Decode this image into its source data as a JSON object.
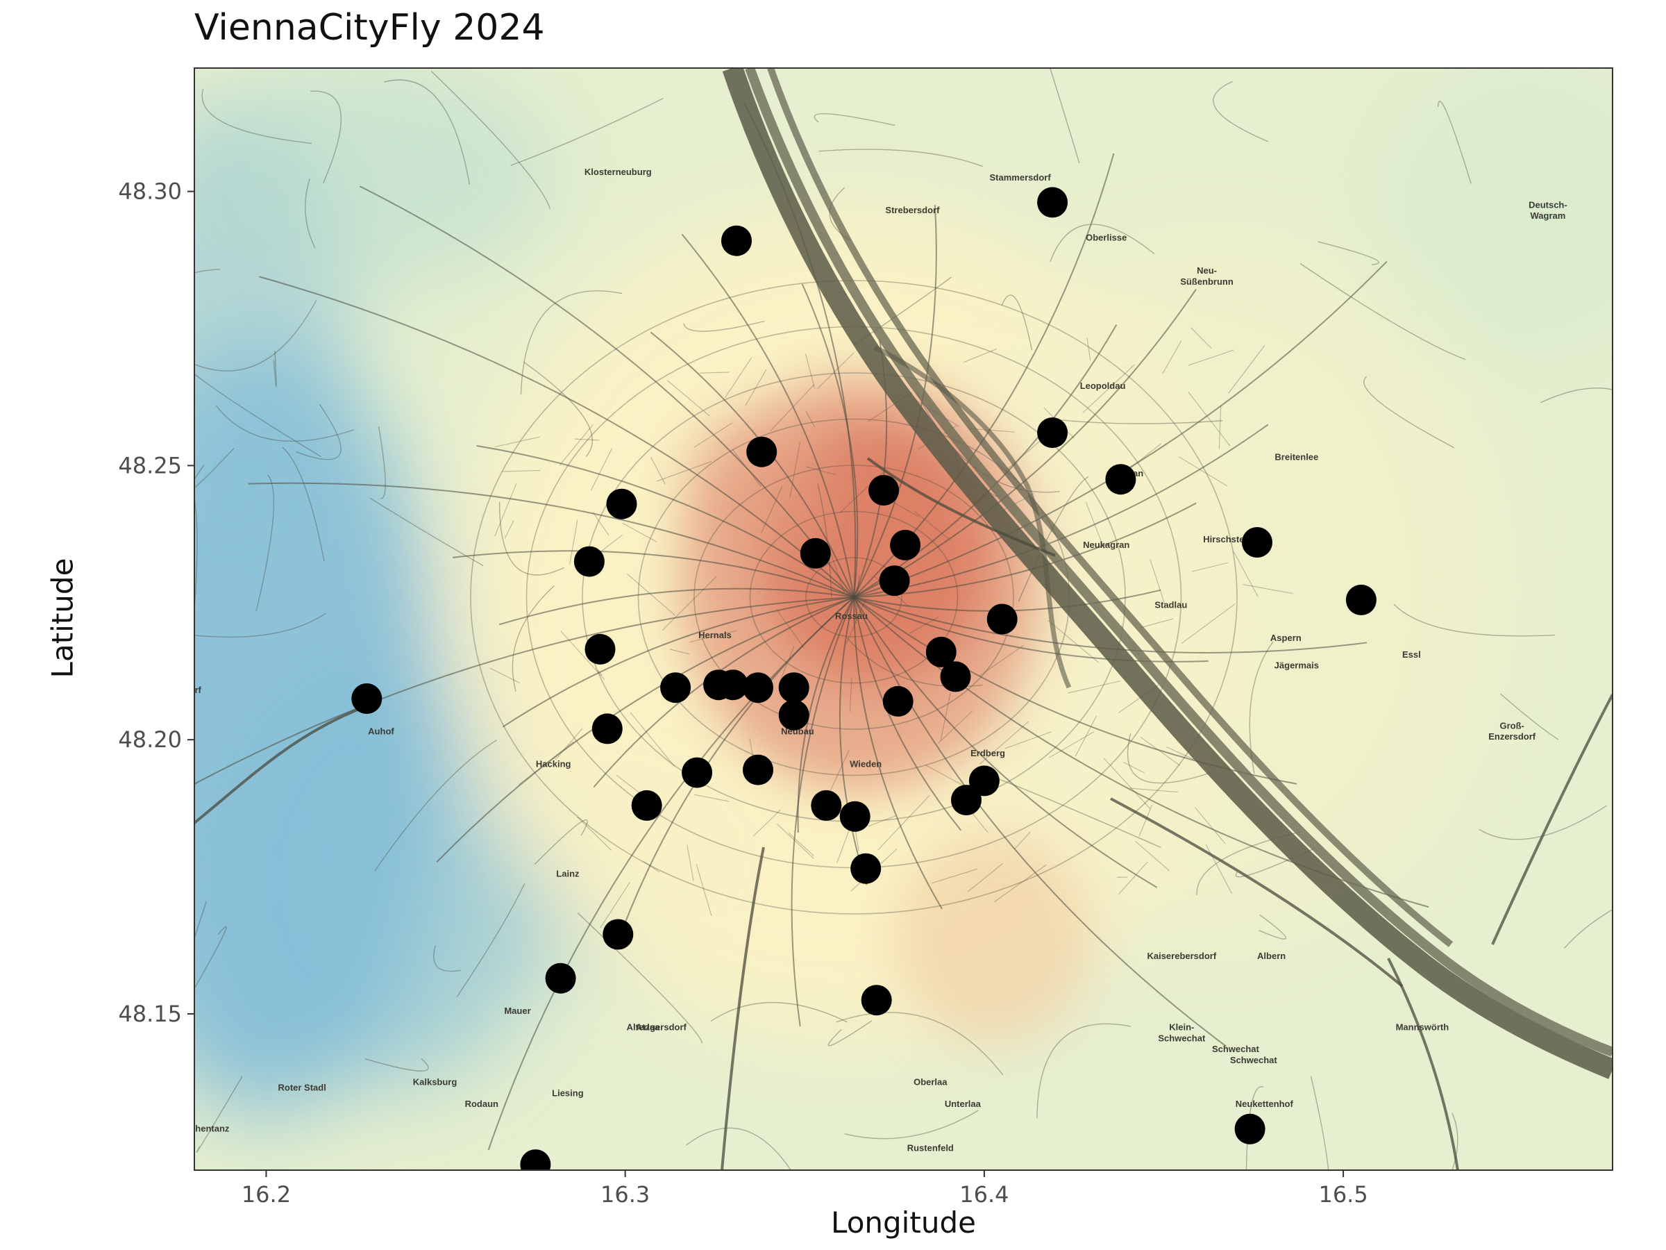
{
  "chart_data": {
    "type": "scatter",
    "title": "ViennaCityFly 2024",
    "xlabel": "Longitude",
    "ylabel": "Latitude",
    "xlim": [
      16.18,
      16.575
    ],
    "ylim": [
      48.1215,
      48.3225
    ],
    "xticks": [
      "16.2",
      "16.3",
      "16.4",
      "16.5"
    ],
    "yticks": [
      "48.15",
      "48.20",
      "48.25",
      "48.30"
    ],
    "grid": false,
    "legend": "none",
    "point_color": "#000000",
    "heat_palette": [
      "#4b9fd6",
      "#a8d5cc",
      "#fcf4c8",
      "#d46b52"
    ],
    "points": [
      {
        "x": 16.228,
        "y": 48.2075
      },
      {
        "x": 16.275,
        "y": 48.1225
      },
      {
        "x": 16.282,
        "y": 48.1565
      },
      {
        "x": 16.29,
        "y": 48.2325
      },
      {
        "x": 16.293,
        "y": 48.2165
      },
      {
        "x": 16.295,
        "y": 48.202
      },
      {
        "x": 16.298,
        "y": 48.1645
      },
      {
        "x": 16.299,
        "y": 48.243
      },
      {
        "x": 16.306,
        "y": 48.188
      },
      {
        "x": 16.314,
        "y": 48.2095
      },
      {
        "x": 16.32,
        "y": 48.194
      },
      {
        "x": 16.326,
        "y": 48.21
      },
      {
        "x": 16.33,
        "y": 48.21
      },
      {
        "x": 16.331,
        "y": 48.291
      },
      {
        "x": 16.337,
        "y": 48.1945
      },
      {
        "x": 16.337,
        "y": 48.2095
      },
      {
        "x": 16.338,
        "y": 48.2525
      },
      {
        "x": 16.347,
        "y": 48.2045
      },
      {
        "x": 16.347,
        "y": 48.2095
      },
      {
        "x": 16.353,
        "y": 48.234
      },
      {
        "x": 16.356,
        "y": 48.188
      },
      {
        "x": 16.364,
        "y": 48.186
      },
      {
        "x": 16.367,
        "y": 48.1765
      },
      {
        "x": 16.37,
        "y": 48.1525
      },
      {
        "x": 16.372,
        "y": 48.2455
      },
      {
        "x": 16.375,
        "y": 48.229
      },
      {
        "x": 16.376,
        "y": 48.207
      },
      {
        "x": 16.378,
        "y": 48.2355
      },
      {
        "x": 16.388,
        "y": 48.216
      },
      {
        "x": 16.392,
        "y": 48.2115
      },
      {
        "x": 16.395,
        "y": 48.189
      },
      {
        "x": 16.4,
        "y": 48.1925
      },
      {
        "x": 16.405,
        "y": 48.222
      },
      {
        "x": 16.419,
        "y": 48.256
      },
      {
        "x": 16.419,
        "y": 48.298
      },
      {
        "x": 16.438,
        "y": 48.2475
      },
      {
        "x": 16.474,
        "y": 48.129
      },
      {
        "x": 16.476,
        "y": 48.236
      },
      {
        "x": 16.505,
        "y": 48.2255
      }
    ]
  },
  "map_labels": [
    {
      "text": "Klosterneuburg",
      "lon": 16.298,
      "lat": 48.303
    },
    {
      "text": "Stammersdorf",
      "lon": 16.41,
      "lat": 48.302
    },
    {
      "text": "Strebersdorf",
      "lon": 16.38,
      "lat": 48.296
    },
    {
      "text": "Oberlisse",
      "lon": 16.434,
      "lat": 48.291
    },
    {
      "text": "Neu-",
      "lon": 16.462,
      "lat": 48.285
    },
    {
      "text": "Süßenbrunn",
      "lon": 16.462,
      "lat": 48.283
    },
    {
      "text": "Deutsch-",
      "lon": 16.557,
      "lat": 48.297
    },
    {
      "text": "Wagram",
      "lon": 16.557,
      "lat": 48.295
    },
    {
      "text": "Leopoldau",
      "lon": 16.433,
      "lat": 48.264
    },
    {
      "text": "Kagran",
      "lon": 16.44,
      "lat": 48.248
    },
    {
      "text": "Breitenlee",
      "lon": 16.487,
      "lat": 48.251
    },
    {
      "text": "Hirschstetten",
      "lon": 16.469,
      "lat": 48.236
    },
    {
      "text": "Neukagran",
      "lon": 16.434,
      "lat": 48.235
    },
    {
      "text": "Stadlau",
      "lon": 16.452,
      "lat": 48.224
    },
    {
      "text": "Aspern",
      "lon": 16.484,
      "lat": 48.218
    },
    {
      "text": "Jägermais",
      "lon": 16.487,
      "lat": 48.213
    },
    {
      "text": "Essl",
      "lon": 16.519,
      "lat": 48.215
    },
    {
      "text": "Groß-",
      "lon": 16.547,
      "lat": 48.202
    },
    {
      "text": "Enzersdorf",
      "lon": 16.547,
      "lat": 48.2
    },
    {
      "text": "Hernals",
      "lon": 16.325,
      "lat": 48.2185
    },
    {
      "text": "Rossau",
      "lon": 16.363,
      "lat": 48.222
    },
    {
      "text": "Neubau",
      "lon": 16.348,
      "lat": 48.201
    },
    {
      "text": "Wieden",
      "lon": 16.367,
      "lat": 48.195
    },
    {
      "text": "Erdberg",
      "lon": 16.401,
      "lat": 48.197
    },
    {
      "text": "Auhof",
      "lon": 16.232,
      "lat": 48.201
    },
    {
      "text": "Hacking",
      "lon": 16.28,
      "lat": 48.195
    },
    {
      "text": "Lainz",
      "lon": 16.284,
      "lat": 48.175
    },
    {
      "text": "Mauer",
      "lon": 16.27,
      "lat": 48.15
    },
    {
      "text": "Atzgersdorf",
      "lon": 16.31,
      "lat": 48.147
    },
    {
      "text": "Alterlaa",
      "lon": 16.305,
      "lat": 48.147
    },
    {
      "text": "Roter Stadl",
      "lon": 16.21,
      "lat": 48.136
    },
    {
      "text": "Kalksburg",
      "lon": 16.247,
      "lat": 48.137
    },
    {
      "text": "Rodaun",
      "lon": 16.26,
      "lat": 48.133
    },
    {
      "text": "Liesing",
      "lon": 16.284,
      "lat": 48.135
    },
    {
      "text": "Oberlaa",
      "lon": 16.385,
      "lat": 48.137
    },
    {
      "text": "Unterlaa",
      "lon": 16.394,
      "lat": 48.133
    },
    {
      "text": "Rustenfeld",
      "lon": 16.385,
      "lat": 48.125
    },
    {
      "text": "Kaiserebersdorf",
      "lon": 16.455,
      "lat": 48.16
    },
    {
      "text": "Albern",
      "lon": 16.48,
      "lat": 48.16
    },
    {
      "text": "Klein-",
      "lon": 16.455,
      "lat": 48.147
    },
    {
      "text": "Schwechat",
      "lon": 16.455,
      "lat": 48.145
    },
    {
      "text": "Schwechat",
      "lon": 16.475,
      "lat": 48.141
    },
    {
      "text": "Mannswörth",
      "lon": 16.522,
      "lat": 48.147
    },
    {
      "text": "Neukettenhof",
      "lon": 16.478,
      "lat": 48.133
    },
    {
      "text": "Schwechat",
      "lon": 16.47,
      "lat": 48.143
    },
    {
      "text": "rf",
      "lon": 16.181,
      "lat": 48.2085
    },
    {
      "text": "hentanz",
      "lon": 16.185,
      "lat": 48.1285
    }
  ]
}
